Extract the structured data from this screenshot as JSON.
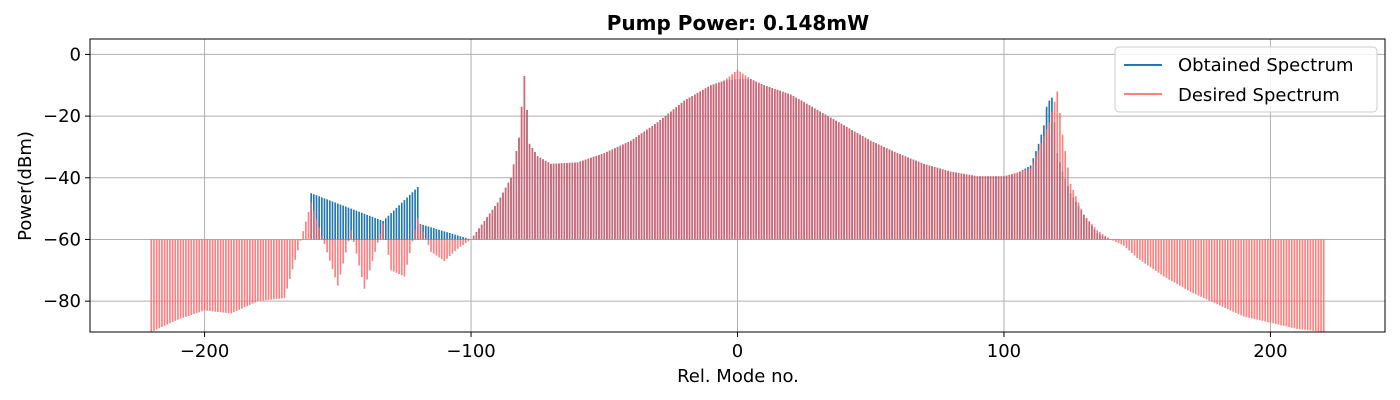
{
  "chart_data": {
    "type": "bar",
    "title": "Pump Power: 0.148mW",
    "xlabel": "Rel. Mode no.",
    "ylabel": "Power(dBm)",
    "xlim": [
      -243,
      243
    ],
    "ylim": [
      -90,
      5
    ],
    "xticks": [
      -200,
      -100,
      0,
      100,
      200
    ],
    "xtick_labels": [
      "−200",
      "−100",
      "0",
      "100",
      "200"
    ],
    "yticks": [
      0,
      -20,
      -40,
      -60,
      -80
    ],
    "ytick_labels": [
      "0",
      "−20",
      "−40",
      "−60",
      "−80"
    ],
    "grid": true,
    "legend_position": "top-right",
    "bar_baseline": -60,
    "x_range": [
      -220,
      220
    ],
    "series": [
      {
        "name": "Obtained Spectrum",
        "color": "#1f77b4",
        "alpha": 1.0,
        "description_points": {
          "x": [
            -160,
            -133,
            -120,
            -119,
            -100,
            -90,
            -85,
            -82,
            -80,
            -78,
            -75,
            -70,
            -60,
            -50,
            -40,
            -30,
            -20,
            -10,
            -5,
            0,
            5,
            10,
            20,
            30,
            40,
            50,
            60,
            70,
            80,
            90,
            100,
            105,
            110,
            113,
            115,
            116,
            117,
            118,
            119,
            120,
            122,
            125,
            130,
            135,
            140,
            143
          ],
          "y": [
            -45,
            -54,
            -43,
            -55,
            -60,
            -48,
            -40,
            -27,
            -7,
            -29,
            -33,
            -35.5,
            -35,
            -32,
            -28,
            -22,
            -15,
            -10,
            -8.5,
            -8,
            -8,
            -10,
            -13,
            -18,
            -23,
            -28,
            -32,
            -35.5,
            -38,
            -39.5,
            -39.5,
            -38.5,
            -36,
            -29,
            -23,
            -17,
            -15,
            -14,
            -22,
            -32,
            -38,
            -45,
            -52,
            -58,
            -60,
            -60
          ]
        }
      },
      {
        "name": "Desired Spectrum",
        "color": "#ff6060",
        "alpha": 0.8,
        "description_points": {
          "x": [
            -220,
            -210,
            -200,
            -190,
            -180,
            -170,
            -160,
            -150,
            -145,
            -140,
            -133,
            -130,
            -125,
            -120,
            -115,
            -110,
            -105,
            -100,
            -90,
            -85,
            -82,
            -80,
            -78,
            -75,
            -70,
            -60,
            -50,
            -40,
            -30,
            -20,
            -10,
            -5,
            0,
            5,
            10,
            20,
            30,
            40,
            50,
            60,
            70,
            80,
            90,
            100,
            110,
            113,
            117,
            120,
            122,
            125,
            130,
            135,
            140,
            145,
            150,
            160,
            170,
            180,
            190,
            200,
            210,
            220
          ],
          "y": [
            -90,
            -86,
            -83,
            -84,
            -80,
            -79,
            -48,
            -75,
            -57,
            -76,
            -55,
            -70,
            -72,
            -53,
            -64,
            -67,
            -63,
            -60,
            -48,
            -40,
            -27,
            -7,
            -29,
            -33,
            -35.5,
            -35,
            -32,
            -28,
            -22,
            -15,
            -10,
            -8.5,
            -5,
            -8,
            -10,
            -13,
            -18,
            -23,
            -28,
            -32,
            -35.5,
            -38,
            -39.5,
            -39.5,
            -37,
            -31,
            -22,
            -12,
            -26,
            -42,
            -52,
            -57,
            -60,
            -62,
            -66,
            -72,
            -77,
            -81,
            -85,
            -87,
            -89,
            -90
          ]
        }
      }
    ]
  }
}
